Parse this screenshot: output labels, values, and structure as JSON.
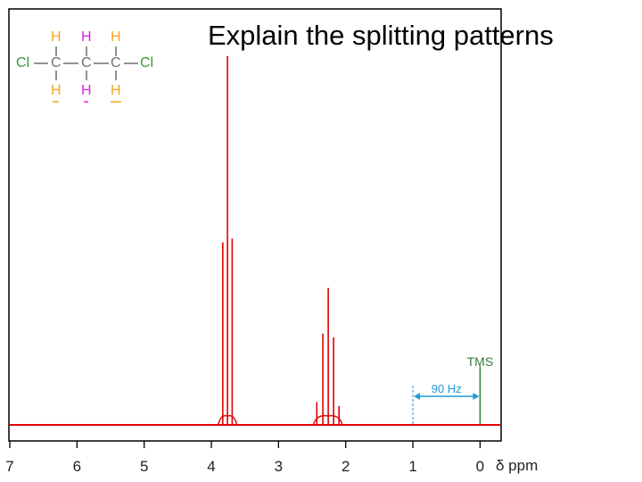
{
  "slide": {
    "title": "Explain the splitting patterns"
  },
  "molecule": {
    "substituents": [
      "Cl",
      "Cl"
    ],
    "backbone": [
      "C",
      "C",
      "C"
    ],
    "hydrogen": "H",
    "colors": {
      "outer_h": "#f5a623",
      "middle_h": "#e020e0",
      "backbone": "#707070",
      "chlorine": "#3a9a3a"
    }
  },
  "chart_data": {
    "type": "line",
    "title": "",
    "xlabel": "δ ppm",
    "ylabel": "",
    "xlim": [
      7,
      -0.3
    ],
    "ylim": [
      0,
      1
    ],
    "x_ticks": [
      7,
      6,
      5,
      4,
      3,
      2,
      1,
      0
    ],
    "x_tick_labels": [
      "7",
      "6",
      "5",
      "4",
      "3",
      "2",
      "1",
      "0"
    ],
    "grid": false,
    "series": [
      {
        "color": "#e00000",
        "peaks": [
          {
            "x": 3.83,
            "y": 0.48
          },
          {
            "x": 3.76,
            "y": 0.97
          },
          {
            "x": 3.69,
            "y": 0.49
          },
          {
            "x": 2.43,
            "y": 0.06
          },
          {
            "x": 2.34,
            "y": 0.24
          },
          {
            "x": 2.26,
            "y": 0.36
          },
          {
            "x": 2.18,
            "y": 0.23
          },
          {
            "x": 2.1,
            "y": 0.05
          }
        ]
      }
    ],
    "annotations": {
      "tms_label": "TMS",
      "tms_x": 0,
      "tms_height": 0.14,
      "tms_color": "#2e7d32",
      "scale_label": "90 Hz",
      "scale_from": 1,
      "scale_to": 0,
      "scale_color": "#1f9ad6"
    }
  }
}
